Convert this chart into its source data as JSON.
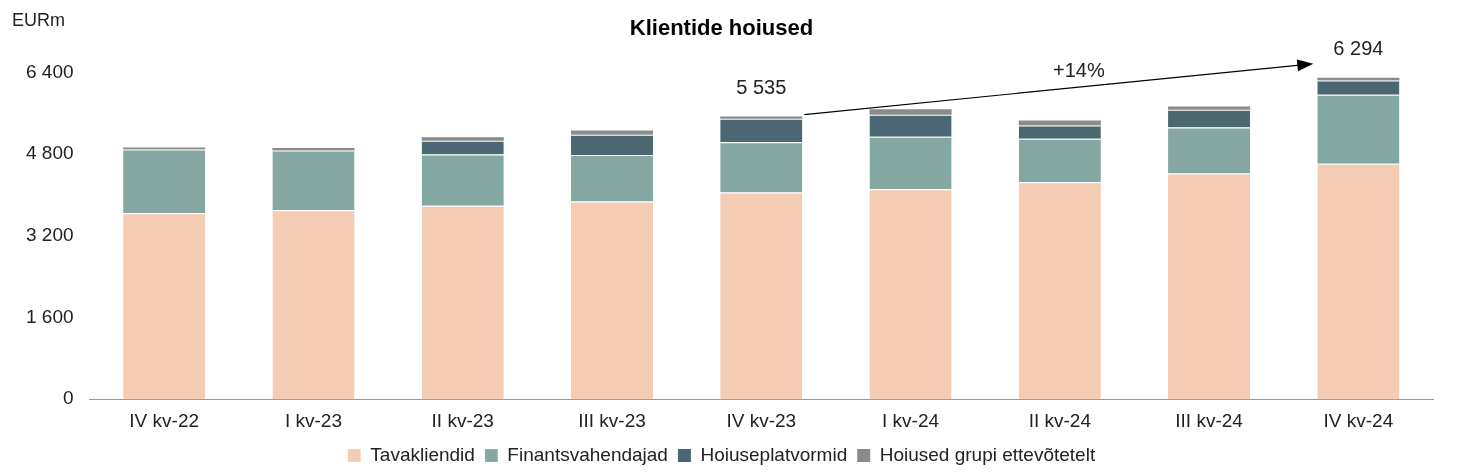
{
  "chart_data": {
    "type": "bar",
    "stacked": true,
    "title": "Klientide hoiused",
    "ylabel": "EURm",
    "categories": [
      "IV kv-22",
      "I kv-23",
      "II kv-23",
      "III kv-23",
      "IV kv-23",
      "I kv-24",
      "II kv-24",
      "III kv-24",
      "IV kv-24"
    ],
    "series": [
      {
        "name": "Tavakliendid",
        "color": "#f4cbb3",
        "values": [
          3640,
          3700,
          3790,
          3870,
          4050,
          4110,
          4250,
          4420,
          4610
        ]
      },
      {
        "name": "Finantsvahendajad",
        "color": "#84a7a1",
        "values": [
          1250,
          1170,
          1000,
          910,
          980,
          1030,
          850,
          900,
          1350
        ]
      },
      {
        "name": "Hoiuseplatvormid",
        "color": "#4b6771",
        "values": [
          0,
          0,
          270,
          400,
          460,
          430,
          260,
          350,
          280
        ]
      },
      {
        "name": "Hoiused grupi ettevõtetelt",
        "color": "#8a8a8a",
        "values": [
          40,
          50,
          70,
          80,
          45,
          110,
          100,
          60,
          54
        ]
      }
    ],
    "totals": [
      null,
      null,
      null,
      null,
      "5 535",
      null,
      null,
      null,
      "6 294"
    ],
    "annotations": [
      "+14%"
    ],
    "ylim": [
      0,
      6400
    ],
    "yticks": [
      0,
      {
        "value": 1600,
        "label": "1 600"
      },
      {
        "value": 3200,
        "label": "3 200"
      },
      {
        "value": 4800,
        "label": "4 800"
      },
      {
        "value": 6400,
        "label": "6 400"
      }
    ],
    "grid": false,
    "legend": "bottom"
  }
}
